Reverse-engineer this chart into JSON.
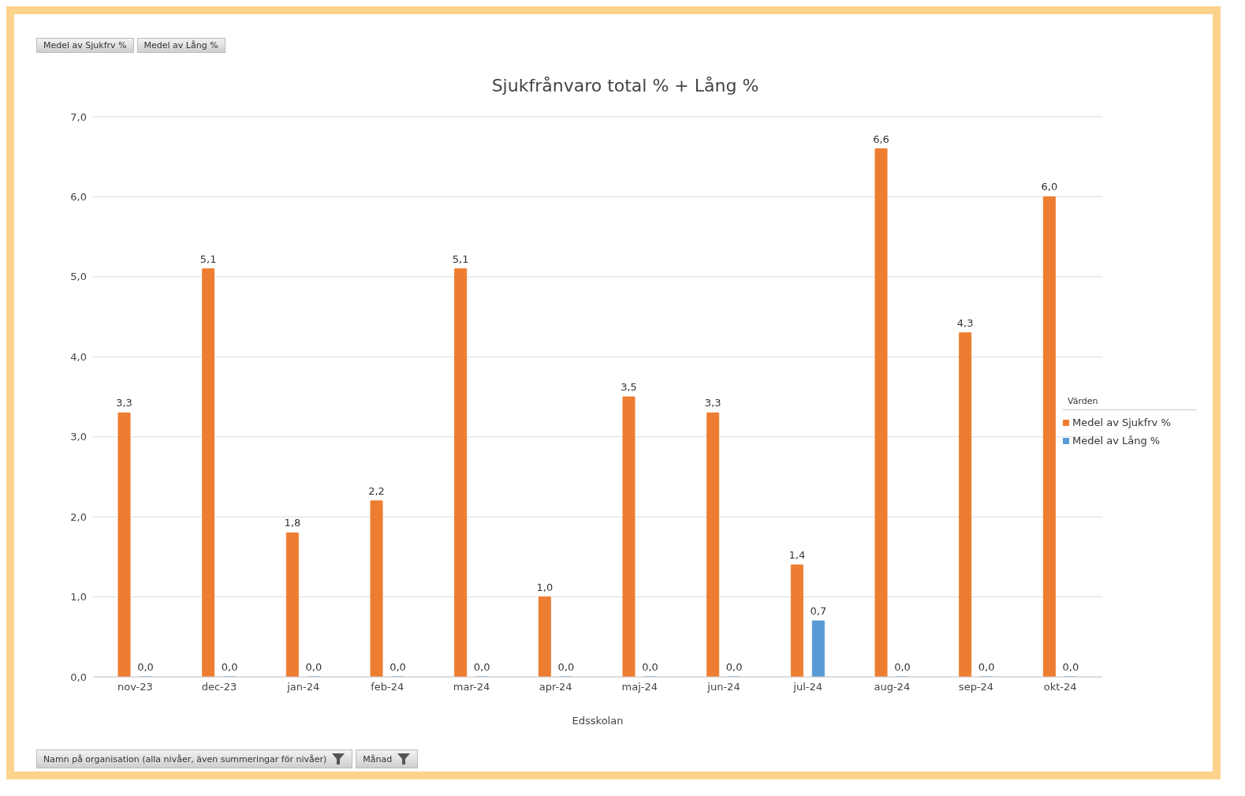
{
  "chart_data": {
    "type": "bar",
    "title": "Sjukfrånvaro total % + Lång %",
    "xlabel": "Edsskolan",
    "legend_title": "Värden",
    "legend": "right",
    "grid": "y",
    "categories": [
      "nov-23",
      "dec-23",
      "jan-24",
      "feb-24",
      "mar-24",
      "apr-24",
      "maj-24",
      "jun-24",
      "jul-24",
      "aug-24",
      "sep-24",
      "okt-24"
    ],
    "series": [
      {
        "name": "Medel av Sjukfrv %",
        "color": "#ed7d31",
        "values": [
          3.3,
          5.1,
          1.8,
          2.2,
          5.1,
          1.0,
          3.5,
          3.3,
          1.4,
          6.6,
          4.3,
          6.0
        ],
        "value_labels": [
          "3,3",
          "5,1",
          "1,8",
          "2,2",
          "5,1",
          "1,0",
          "3,5",
          "3,3",
          "1,4",
          "6,6",
          "4,3",
          "6,0"
        ]
      },
      {
        "name": "Medel av Lång %",
        "color": "#5b9bd5",
        "values": [
          0,
          0,
          0,
          0,
          0,
          0,
          0,
          0,
          0.7,
          0,
          0,
          0
        ],
        "value_labels": [
          "0,0",
          "0,0",
          "0,0",
          "0,0",
          "0,0",
          "0,0",
          "0,0",
          "0,0",
          "0,7",
          "0,0",
          "0,0",
          "0,0"
        ]
      }
    ],
    "ylim": [
      0,
      7
    ],
    "yticks": [
      {
        "value": 0,
        "label": "0,0"
      },
      {
        "value": 1,
        "label": "1,0"
      },
      {
        "value": 2,
        "label": "2,0"
      },
      {
        "value": 3,
        "label": "3,0"
      },
      {
        "value": 4,
        "label": "4,0"
      },
      {
        "value": 5,
        "label": "5,0"
      },
      {
        "value": 6,
        "label": "6,0"
      },
      {
        "value": 7,
        "label": "7,0"
      }
    ],
    "annotations": [
      "Medel av Sjukfrv %",
      "Medel av Lång %",
      "Namn på organisation (alla nivåer, även summeringar för nivåer)",
      "Månad"
    ]
  }
}
